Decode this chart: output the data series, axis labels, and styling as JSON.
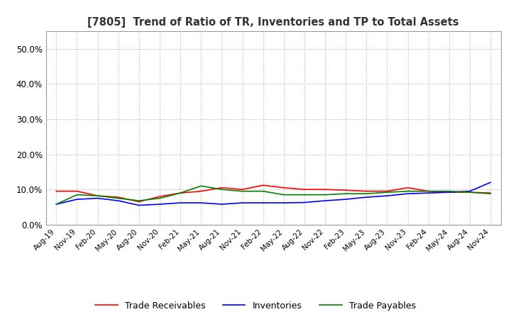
{
  "title": "[7805]  Trend of Ratio of TR, Inventories and TP to Total Assets",
  "x_labels": [
    "Aug-19",
    "Nov-19",
    "Feb-20",
    "May-20",
    "Aug-20",
    "Nov-20",
    "Feb-21",
    "May-21",
    "Aug-21",
    "Nov-21",
    "Feb-22",
    "May-22",
    "Aug-22",
    "Nov-22",
    "Feb-23",
    "May-23",
    "Aug-23",
    "Nov-23",
    "Feb-24",
    "May-24",
    "Aug-24",
    "Nov-24"
  ],
  "trade_receivables": [
    0.095,
    0.095,
    0.082,
    0.078,
    0.065,
    0.08,
    0.09,
    0.095,
    0.105,
    0.1,
    0.112,
    0.105,
    0.1,
    0.1,
    0.098,
    0.095,
    0.095,
    0.105,
    0.095,
    0.092,
    0.092,
    0.09
  ],
  "inventories": [
    0.058,
    0.072,
    0.075,
    0.068,
    0.055,
    0.058,
    0.062,
    0.062,
    0.058,
    0.062,
    0.062,
    0.062,
    0.063,
    0.068,
    0.072,
    0.078,
    0.082,
    0.088,
    0.09,
    0.092,
    0.095,
    0.12
  ],
  "trade_payables": [
    0.058,
    0.085,
    0.082,
    0.075,
    0.068,
    0.075,
    0.09,
    0.11,
    0.1,
    0.095,
    0.095,
    0.085,
    0.085,
    0.085,
    0.088,
    0.088,
    0.092,
    0.095,
    0.095,
    0.095,
    0.092,
    0.088
  ],
  "colors": {
    "trade_receivables": "#ff0000",
    "inventories": "#0000ff",
    "trade_payables": "#008000"
  },
  "ylim": [
    0.0,
    0.55
  ],
  "yticks": [
    0.0,
    0.1,
    0.2,
    0.3,
    0.4,
    0.5
  ],
  "background_color": "#ffffff",
  "grid_color": "#aaaaaa"
}
